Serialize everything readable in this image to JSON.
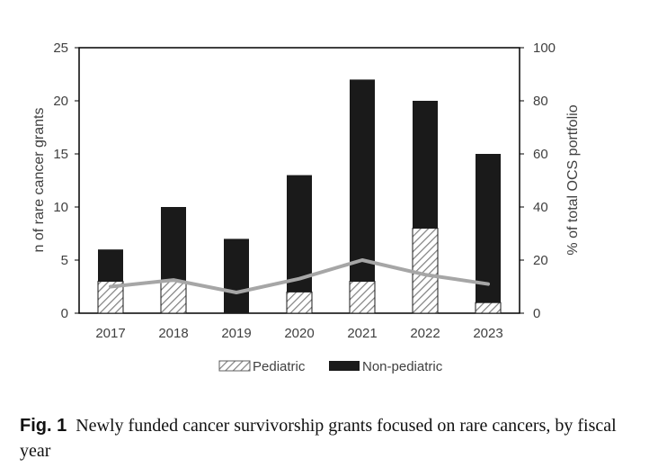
{
  "chart_data": {
    "type": "bar",
    "stacked": true,
    "categories": [
      "2017",
      "2018",
      "2019",
      "2020",
      "2021",
      "2022",
      "2023"
    ],
    "series": [
      {
        "name": "Pediatric",
        "values": [
          3,
          3,
          0,
          2,
          3,
          8,
          1
        ],
        "fill": "hatched"
      },
      {
        "name": "Non-pediatric",
        "values": [
          3,
          7,
          7,
          11,
          19,
          12,
          14
        ],
        "fill": "#1a1a1a"
      }
    ],
    "line_series": {
      "axis": "right",
      "values": [
        10,
        12.5,
        7.8,
        13,
        20,
        14.5,
        11
      ],
      "color": "#a6a6a6"
    },
    "ylabel": "n of rare cancer grants",
    "y2label": "% of total OCS portfolio",
    "ylim": [
      0,
      25
    ],
    "y2lim": [
      0,
      100
    ],
    "yticks": [
      "0",
      "5",
      "10",
      "15",
      "20",
      "25"
    ],
    "y2ticks": [
      "0",
      "20",
      "40",
      "60",
      "80",
      "100"
    ],
    "grid": false,
    "legend_position": "bottom-center"
  },
  "caption": {
    "label": "Fig. 1",
    "text": "Newly funded cancer survivorship grants focused on rare cancers, by fiscal year"
  }
}
